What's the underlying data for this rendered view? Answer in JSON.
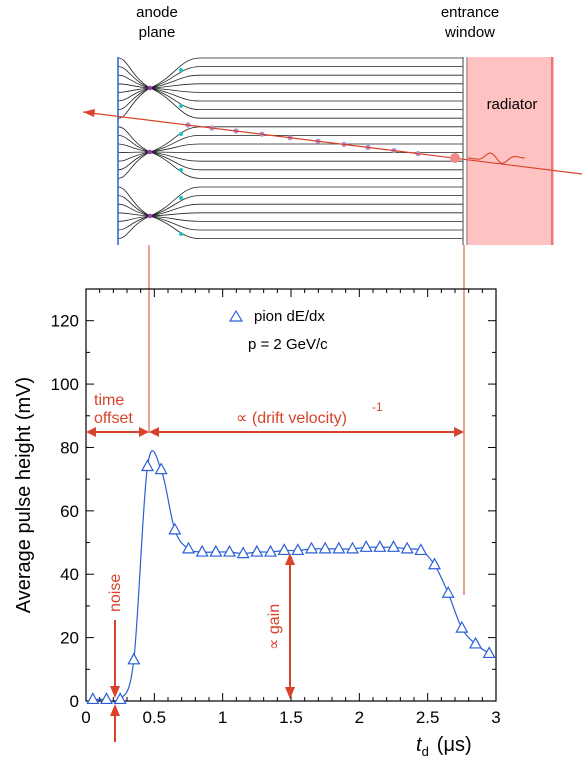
{
  "diagram": {
    "anode_label_line1": "anode",
    "anode_label_line2": "plane",
    "window_label_line1": "entrance",
    "window_label_line2": "window",
    "radiator_label": "radiator"
  },
  "annotations": {
    "time_offset_line1": "time",
    "time_offset_line2": "offset",
    "drift_velocity": "∝ (drift velocity)",
    "drift_velocity_exp": "-1",
    "noise": "noise",
    "gain": "∝ gain",
    "legend_title": "pion dE/dx",
    "legend_momentum": "p = 2 GeV/c"
  },
  "colors": {
    "series": "#2a5fd6",
    "annotation": "#d9432b",
    "radiator_fill": "#ffc2c2",
    "axis": "#000000"
  },
  "chart_data": {
    "type": "line",
    "title": "",
    "xlabel": "t_d  (μs)",
    "ylabel": "Average pulse height (mV)",
    "xlim": [
      0,
      3
    ],
    "ylim": [
      0,
      130
    ],
    "x_ticks": [
      "0",
      "0.5",
      "1",
      "1.5",
      "2",
      "2.5",
      "3"
    ],
    "y_ticks": [
      "0",
      "20",
      "40",
      "60",
      "80",
      "100",
      "120"
    ],
    "legend": "top-center",
    "series": [
      {
        "name": "pion dE/dx",
        "marker": "triangle-open",
        "x": [
          0.05,
          0.15,
          0.25,
          0.35,
          0.45,
          0.55,
          0.65,
          0.75,
          0.85,
          0.95,
          1.05,
          1.15,
          1.25,
          1.35,
          1.45,
          1.55,
          1.65,
          1.75,
          1.85,
          1.95,
          2.05,
          2.15,
          2.25,
          2.35,
          2.45,
          2.55,
          2.65,
          2.75,
          2.85,
          2.95
        ],
        "y": [
          0.5,
          0.5,
          0.5,
          13,
          74,
          73,
          54,
          48,
          47,
          47,
          47,
          46.5,
          47,
          47,
          47.5,
          47.5,
          48,
          48,
          48,
          48,
          48.5,
          48.5,
          48.5,
          48,
          47.5,
          43,
          34,
          23,
          18,
          15
        ]
      }
    ]
  }
}
